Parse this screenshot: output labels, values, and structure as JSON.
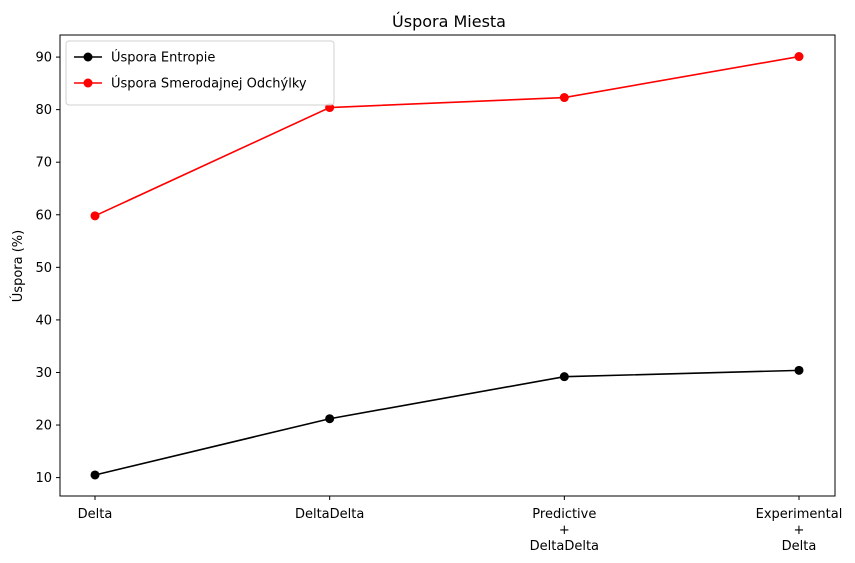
{
  "chart_data": {
    "type": "line",
    "title": "Úspora Miesta",
    "xlabel": "",
    "ylabel": "Úspora (%)",
    "categories": [
      [
        "Delta"
      ],
      [
        "DeltaDelta"
      ],
      [
        "Predictive",
        "+",
        "DeltaDelta"
      ],
      [
        "Experimental",
        "+",
        "Delta"
      ]
    ],
    "series": [
      {
        "name": "Úspora Entropie",
        "color": "#000000",
        "values": [
          10.5,
          21.2,
          29.2,
          30.4
        ]
      },
      {
        "name": "Úspora Smerodajnej Odchýlky",
        "color": "#ff0000",
        "values": [
          59.8,
          80.4,
          82.3,
          90.1
        ]
      }
    ],
    "yticks": [
      10,
      20,
      30,
      40,
      50,
      60,
      70,
      80,
      90
    ],
    "ylim": [
      6.5,
      94.2
    ],
    "grid": false,
    "legend_position": "top-left"
  }
}
